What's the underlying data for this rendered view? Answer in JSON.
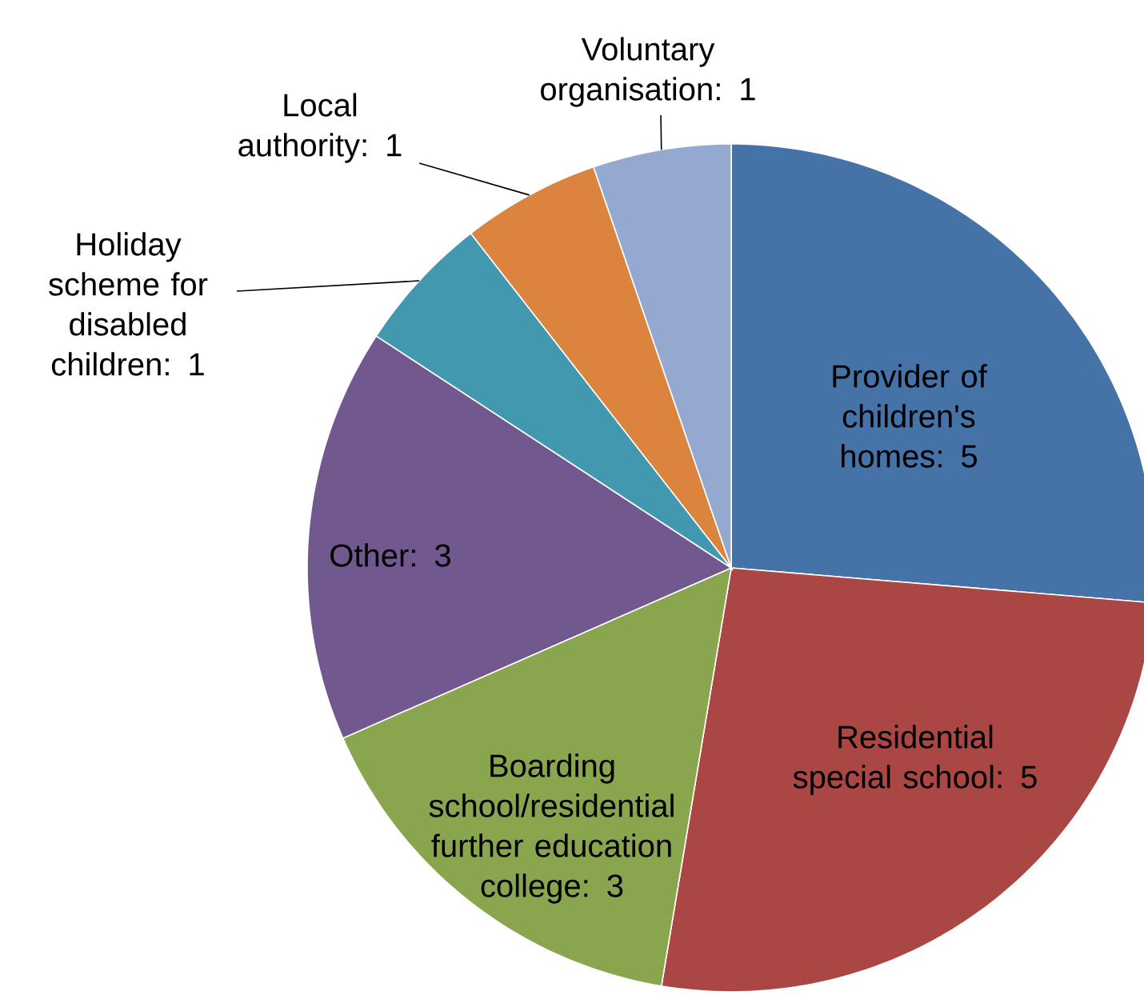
{
  "chart_data": {
    "type": "pie",
    "categories": [
      "Provider of children's homes",
      "Residential special school",
      "Boarding school/residential further education college",
      "Other",
      "Holiday scheme for disabled children",
      "Local authority",
      "Voluntary organisation"
    ],
    "values": [
      5,
      5,
      3,
      3,
      1,
      1,
      1
    ],
    "colors": [
      "#4572a7",
      "#aa4643",
      "#89a54e",
      "#71588f",
      "#4198af",
      "#db843d",
      "#93a9cf"
    ],
    "value_labels": [
      ": 5",
      ": 5",
      ": 3",
      ": 3",
      ": 1",
      ": 1",
      ": 1"
    ],
    "legend": false
  }
}
